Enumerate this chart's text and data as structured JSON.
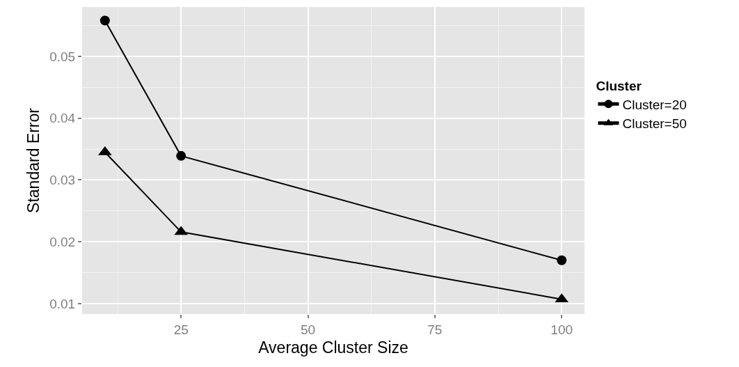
{
  "chart_data": {
    "type": "line",
    "xlabel": "Average Cluster Size",
    "ylabel": "Standard Error",
    "legend_title": "Cluster",
    "x": [
      10,
      25,
      100
    ],
    "series": [
      {
        "name": "Cluster=20",
        "color": "#000000",
        "marker": "circle",
        "values": [
          0.0558,
          0.0339,
          0.017
        ]
      },
      {
        "name": "Cluster=50",
        "color": "#000000",
        "marker": "triangle",
        "values": [
          0.0345,
          0.0216,
          0.0107
        ]
      }
    ],
    "xlim": [
      5.5,
      104.5
    ],
    "xticks": [
      25,
      50,
      75,
      100
    ],
    "ylim": [
      0.0083,
      0.058
    ],
    "yticks": [
      0.01,
      0.02,
      0.03,
      0.04,
      0.05
    ],
    "grid": true,
    "legend": "right"
  }
}
